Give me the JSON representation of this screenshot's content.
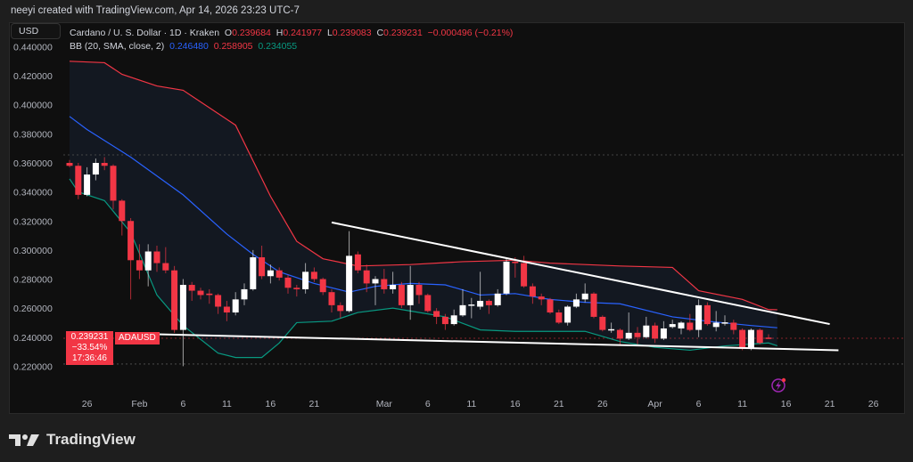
{
  "credit": "neeyi created with TradingView.com, Apr 14, 2026 23:23 UTC-7",
  "currency_button": "USD",
  "legend": {
    "symbol": "Cardano / U. S. Dollar · 1D · Kraken",
    "o_label": "O",
    "o": "0.239684",
    "h_label": "H",
    "h": "0.241977",
    "l_label": "L",
    "l": "0.239083",
    "c_label": "C",
    "c": "0.239231",
    "change": "−0.000496 (−0.21%)",
    "bb_label": "BB (20, SMA, close, 2)",
    "bb_basis": "0.246480",
    "bb_upper": "0.258905",
    "bb_lower": "0.234055"
  },
  "price_box": {
    "price": "0.239231",
    "change_pct": "−33.54%",
    "countdown": "17:36:46",
    "symbol": "ADAUSD"
  },
  "brand": "TradingView",
  "colors": {
    "up": "#ffffff",
    "down": "#f23645",
    "bb_basis": "#2962ff",
    "bb_upper": "#f23645",
    "bb_lower": "#089981",
    "trendline": "#ffffff",
    "alert_icon": "#9c27b0"
  },
  "chart_data": {
    "type": "candlestick",
    "ylim": [
      0.21,
      0.445
    ],
    "y_ticks": [
      "0.440000",
      "0.420000",
      "0.400000",
      "0.380000",
      "0.360000",
      "0.340000",
      "0.320000",
      "0.300000",
      "0.280000",
      "0.260000",
      "0.240000",
      "0.220000"
    ],
    "y_tick_values": [
      0.44,
      0.42,
      0.4,
      0.38,
      0.36,
      0.34,
      0.32,
      0.3,
      0.28,
      0.26,
      0.24,
      0.22
    ],
    "x_ticks": [
      {
        "label": "26",
        "bar": 2
      },
      {
        "label": "Feb",
        "bar": 8
      },
      {
        "label": "6",
        "bar": 13
      },
      {
        "label": "11",
        "bar": 18
      },
      {
        "label": "16",
        "bar": 23
      },
      {
        "label": "21",
        "bar": 28
      },
      {
        "label": "Mar",
        "bar": 36
      },
      {
        "label": "6",
        "bar": 41
      },
      {
        "label": "11",
        "bar": 46
      },
      {
        "label": "16",
        "bar": 51
      },
      {
        "label": "21",
        "bar": 56
      },
      {
        "label": "26",
        "bar": 61
      },
      {
        "label": "Apr",
        "bar": 67
      },
      {
        "label": "6",
        "bar": 72
      },
      {
        "label": "11",
        "bar": 77
      },
      {
        "label": "16",
        "bar": 82
      },
      {
        "label": "21",
        "bar": 87
      },
      {
        "label": "26",
        "bar": 92
      }
    ],
    "candles_ohlc": [
      [
        0.36,
        0.362,
        0.357,
        0.358
      ],
      [
        0.358,
        0.36,
        0.335,
        0.338
      ],
      [
        0.338,
        0.357,
        0.337,
        0.352
      ],
      [
        0.352,
        0.363,
        0.348,
        0.36
      ],
      [
        0.36,
        0.364,
        0.355,
        0.358
      ],
      [
        0.358,
        0.359,
        0.328,
        0.334
      ],
      [
        0.334,
        0.335,
        0.31,
        0.32
      ],
      [
        0.32,
        0.322,
        0.266,
        0.293
      ],
      [
        0.293,
        0.304,
        0.28,
        0.286
      ],
      [
        0.286,
        0.304,
        0.275,
        0.299
      ],
      [
        0.299,
        0.303,
        0.285,
        0.291
      ],
      [
        0.291,
        0.302,
        0.284,
        0.286
      ],
      [
        0.286,
        0.289,
        0.243,
        0.245
      ],
      [
        0.245,
        0.28,
        0.22,
        0.276
      ],
      [
        0.276,
        0.278,
        0.265,
        0.272
      ],
      [
        0.272,
        0.274,
        0.266,
        0.269
      ],
      [
        0.27,
        0.273,
        0.263,
        0.269
      ],
      [
        0.269,
        0.27,
        0.256,
        0.261
      ],
      [
        0.261,
        0.265,
        0.251,
        0.257
      ],
      [
        0.257,
        0.271,
        0.255,
        0.266
      ],
      [
        0.266,
        0.277,
        0.262,
        0.273
      ],
      [
        0.273,
        0.3,
        0.272,
        0.295
      ],
      [
        0.295,
        0.303,
        0.28,
        0.282
      ],
      [
        0.282,
        0.29,
        0.277,
        0.286
      ],
      [
        0.286,
        0.288,
        0.279,
        0.281
      ],
      [
        0.281,
        0.283,
        0.27,
        0.274
      ],
      [
        0.274,
        0.276,
        0.268,
        0.273
      ],
      [
        0.273,
        0.291,
        0.27,
        0.285
      ],
      [
        0.285,
        0.288,
        0.278,
        0.28
      ],
      [
        0.28,
        0.281,
        0.269,
        0.271
      ],
      [
        0.271,
        0.273,
        0.257,
        0.262
      ],
      [
        0.262,
        0.264,
        0.253,
        0.258
      ],
      [
        0.258,
        0.313,
        0.257,
        0.296
      ],
      [
        0.297,
        0.299,
        0.284,
        0.286
      ],
      [
        0.286,
        0.29,
        0.271,
        0.277
      ],
      [
        0.277,
        0.282,
        0.262,
        0.28
      ],
      [
        0.28,
        0.287,
        0.27,
        0.273
      ],
      [
        0.273,
        0.285,
        0.27,
        0.276
      ],
      [
        0.276,
        0.278,
        0.26,
        0.262
      ],
      [
        0.262,
        0.289,
        0.252,
        0.276
      ],
      [
        0.276,
        0.278,
        0.263,
        0.269
      ],
      [
        0.269,
        0.27,
        0.257,
        0.258
      ],
      [
        0.258,
        0.26,
        0.249,
        0.254
      ],
      [
        0.254,
        0.256,
        0.245,
        0.249
      ],
      [
        0.249,
        0.259,
        0.248,
        0.255
      ],
      [
        0.255,
        0.273,
        0.254,
        0.262
      ],
      [
        0.262,
        0.267,
        0.253,
        0.2625
      ],
      [
        0.261,
        0.285,
        0.259,
        0.265
      ],
      [
        0.265,
        0.266,
        0.256,
        0.262
      ],
      [
        0.262,
        0.273,
        0.261,
        0.27
      ],
      [
        0.27,
        0.294,
        0.269,
        0.292
      ],
      [
        0.292,
        0.295,
        0.281,
        0.291
      ],
      [
        0.291,
        0.296,
        0.274,
        0.275
      ],
      [
        0.275,
        0.277,
        0.263,
        0.268
      ],
      [
        0.268,
        0.27,
        0.262,
        0.266
      ],
      [
        0.266,
        0.267,
        0.256,
        0.257
      ],
      [
        0.257,
        0.259,
        0.249,
        0.25
      ],
      [
        0.25,
        0.262,
        0.248,
        0.261
      ],
      [
        0.261,
        0.27,
        0.26,
        0.266
      ],
      [
        0.266,
        0.277,
        0.264,
        0.27
      ],
      [
        0.27,
        0.271,
        0.253,
        0.254
      ],
      [
        0.254,
        0.255,
        0.244,
        0.245
      ],
      [
        0.245,
        0.25,
        0.243,
        0.2455
      ],
      [
        0.245,
        0.246,
        0.234,
        0.239
      ],
      [
        0.239,
        0.257,
        0.238,
        0.243
      ],
      [
        0.243,
        0.247,
        0.234,
        0.24
      ],
      [
        0.24,
        0.254,
        0.239,
        0.248
      ],
      [
        0.248,
        0.25,
        0.236,
        0.239
      ],
      [
        0.239,
        0.251,
        0.238,
        0.246
      ],
      [
        0.247,
        0.252,
        0.246,
        0.249
      ],
      [
        0.246,
        0.251,
        0.242,
        0.25
      ],
      [
        0.25,
        0.256,
        0.244,
        0.245
      ],
      [
        0.245,
        0.266,
        0.24,
        0.262
      ],
      [
        0.262,
        0.264,
        0.248,
        0.249
      ],
      [
        0.247,
        0.258,
        0.244,
        0.25
      ],
      [
        0.25,
        0.255,
        0.248,
        0.2502
      ],
      [
        0.25,
        0.252,
        0.242,
        0.245
      ],
      [
        0.245,
        0.246,
        0.231,
        0.232
      ],
      [
        0.232,
        0.246,
        0.231,
        0.245
      ],
      [
        0.245,
        0.246,
        0.235,
        0.236
      ],
      [
        0.239684,
        0.241977,
        0.239083,
        0.239231
      ]
    ],
    "bb_upper": [
      [
        0,
        0.43
      ],
      [
        4,
        0.429
      ],
      [
        6,
        0.421
      ],
      [
        10,
        0.413
      ],
      [
        13,
        0.41
      ],
      [
        19,
        0.386
      ],
      [
        23,
        0.337
      ],
      [
        26,
        0.306
      ],
      [
        29,
        0.294
      ],
      [
        33,
        0.289
      ],
      [
        39,
        0.29
      ],
      [
        45,
        0.292
      ],
      [
        51,
        0.293
      ],
      [
        55,
        0.291
      ],
      [
        63,
        0.289
      ],
      [
        69,
        0.288
      ],
      [
        72,
        0.272
      ],
      [
        77,
        0.266
      ],
      [
        80,
        0.259
      ],
      [
        81,
        0.258905
      ]
    ],
    "bb_basis": [
      [
        0,
        0.392
      ],
      [
        2,
        0.383
      ],
      [
        7,
        0.364
      ],
      [
        13,
        0.338
      ],
      [
        18,
        0.311
      ],
      [
        21,
        0.297
      ],
      [
        24,
        0.285
      ],
      [
        28,
        0.277
      ],
      [
        32,
        0.271
      ],
      [
        35,
        0.275
      ],
      [
        39,
        0.277
      ],
      [
        43,
        0.276
      ],
      [
        47,
        0.269
      ],
      [
        51,
        0.27
      ],
      [
        55,
        0.266
      ],
      [
        59,
        0.264
      ],
      [
        63,
        0.263
      ],
      [
        69,
        0.254
      ],
      [
        73,
        0.251
      ],
      [
        78,
        0.248
      ],
      [
        81,
        0.24648
      ]
    ],
    "bb_lower": [
      [
        0,
        0.349
      ],
      [
        1,
        0.34
      ],
      [
        4,
        0.334
      ],
      [
        7,
        0.312
      ],
      [
        10,
        0.269
      ],
      [
        13,
        0.248
      ],
      [
        17,
        0.229
      ],
      [
        19,
        0.226
      ],
      [
        22,
        0.226
      ],
      [
        24,
        0.236
      ],
      [
        26,
        0.25
      ],
      [
        30,
        0.251
      ],
      [
        33,
        0.257
      ],
      [
        37,
        0.26
      ],
      [
        39,
        0.258
      ],
      [
        43,
        0.254
      ],
      [
        47,
        0.245
      ],
      [
        51,
        0.244
      ],
      [
        59,
        0.244
      ],
      [
        63,
        0.237
      ],
      [
        67,
        0.233
      ],
      [
        71,
        0.231
      ],
      [
        75,
        0.234
      ],
      [
        80,
        0.236
      ],
      [
        81,
        0.234055
      ]
    ],
    "trendlines": [
      {
        "from": [
          30,
          0.319
        ],
        "to": [
          87,
          0.249
        ]
      },
      {
        "from": [
          10,
          0.242
        ],
        "to": [
          88,
          0.231
        ]
      }
    ],
    "horizontal_lines": [
      0.3655,
      0.2215
    ],
    "last_price": 0.239231
  }
}
